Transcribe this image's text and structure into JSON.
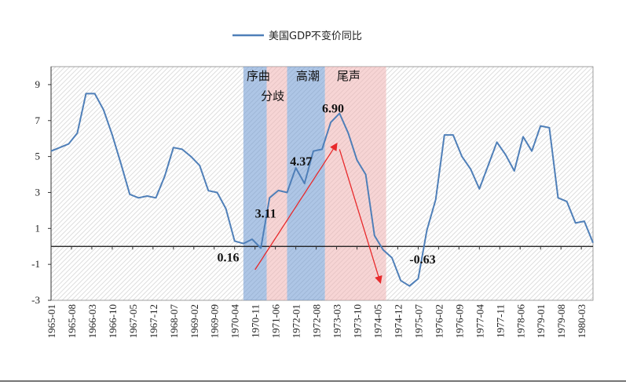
{
  "chart_data": {
    "type": "line",
    "series": [
      {
        "name": "美国GDP不变价同比",
        "color": "#4f7fb8",
        "values": [
          5.3,
          5.5,
          5.7,
          6.3,
          8.5,
          8.5,
          7.6,
          6.2,
          4.6,
          2.9,
          2.7,
          2.8,
          2.7,
          3.9,
          5.5,
          5.4,
          5.0,
          4.5,
          3.1,
          3.0,
          2.1,
          0.3,
          0.16,
          0.4,
          -0.1,
          2.7,
          3.11,
          3.0,
          4.37,
          3.5,
          5.3,
          5.4,
          6.9,
          7.4,
          6.3,
          4.8,
          4.0,
          0.6,
          -0.2,
          -0.63,
          -1.9,
          -2.2,
          -1.8,
          0.9,
          2.6,
          6.2,
          6.2,
          5.0,
          4.3,
          3.2,
          4.5,
          5.8,
          5.1,
          4.2,
          6.1,
          5.3,
          6.7,
          6.6,
          2.7,
          2.5,
          1.3,
          1.4,
          0.2
        ]
      }
    ],
    "x_tick_labels": [
      "1965-01",
      "1965-08",
      "1966-03",
      "1966-10",
      "1967-05",
      "1967-12",
      "1968-07",
      "1969-02",
      "1969-09",
      "1970-04",
      "1970-11",
      "1971-06",
      "1972-01",
      "1972-08",
      "1973-03",
      "1973-10",
      "1974-05",
      "1974-12",
      "1975-07",
      "1976-02",
      "1976-09",
      "1977-04",
      "1977-11",
      "1978-06",
      "1979-01",
      "1979-08",
      "1980-03"
    ],
    "x_range": [
      "1965-01",
      "1980-07"
    ],
    "ylim": [
      -3,
      10
    ],
    "y_ticks": [
      -3,
      -1,
      1,
      3,
      5,
      7,
      9
    ],
    "grid": "diagonal hatch",
    "legend_position": "top",
    "phases": [
      {
        "label": "序曲",
        "start": "1970-07",
        "end": "1971-03",
        "color": "#6b98d1"
      },
      {
        "label": "分歧",
        "start": "1971-03",
        "end": "1971-10",
        "color": "#f0b3b3"
      },
      {
        "label": "高潮",
        "start": "1971-10",
        "end": "1972-11",
        "color": "#6b98d1"
      },
      {
        "label": "尾声",
        "start": "1972-11",
        "end": "1974-08",
        "color": "#f0b3b3"
      }
    ],
    "annotations": [
      "0.16",
      "3.11",
      "4.37",
      "6.90",
      "-0.63"
    ],
    "arrows": [
      {
        "from": [
          "1970-11",
          -1.3
        ],
        "to": [
          "1973-03",
          5.7
        ],
        "color": "#e8292b"
      },
      {
        "from": [
          "1973-04",
          5.4
        ],
        "to": [
          "1974-06",
          -2.0
        ],
        "color": "#e8292b"
      }
    ]
  }
}
